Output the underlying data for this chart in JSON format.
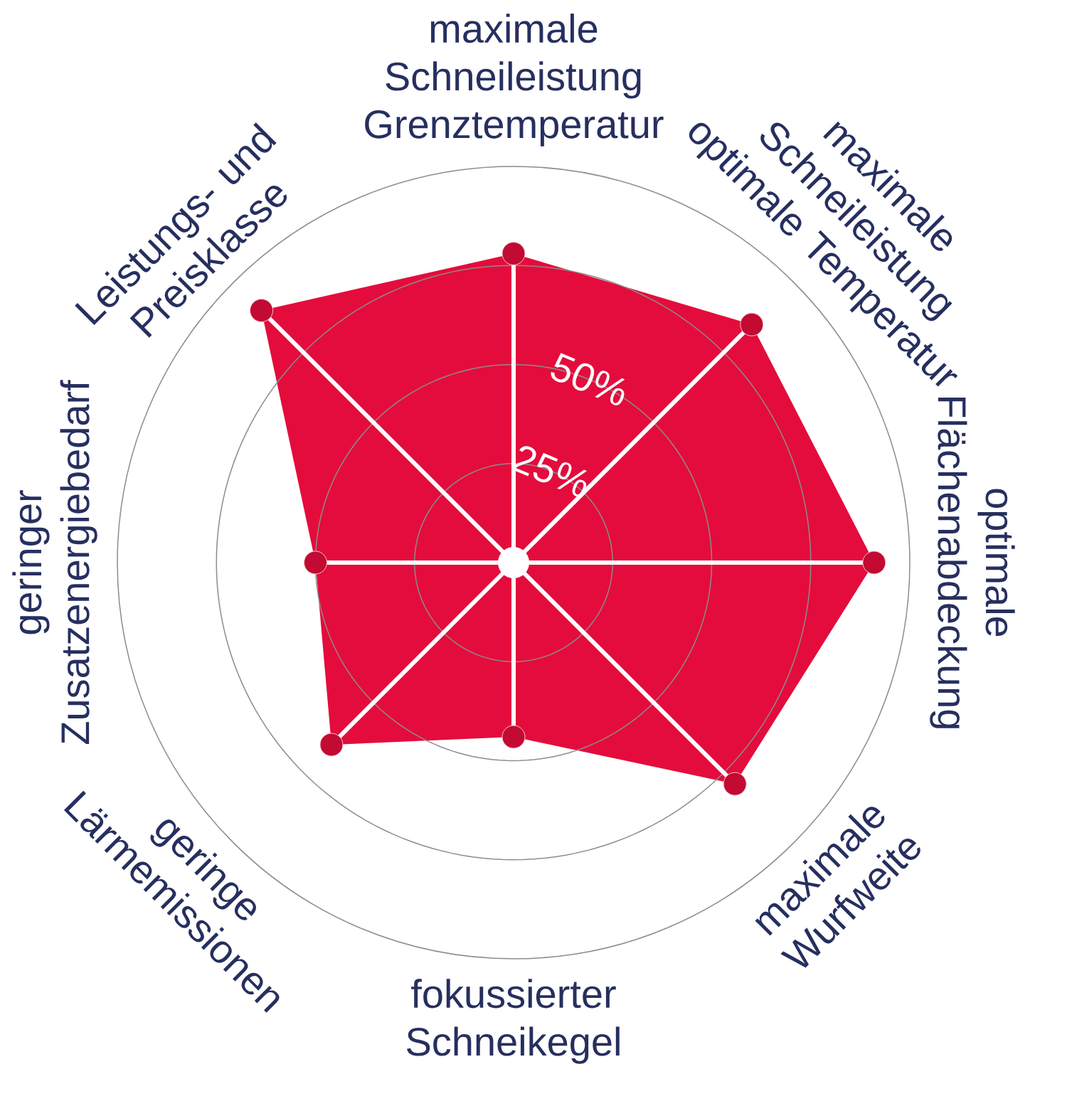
{
  "chart_data": {
    "type": "radar",
    "categories": [
      "maximale Schneileistung Grenztemperatur",
      "maximale Schneileistung optimale Temperatur",
      "optimale Flächenabdeckung",
      "maximale Wurfweite",
      "fokussierter Schneikegel",
      "geringe Lärmemissionen",
      "geringer Zusatzenergiebedarf",
      "Leistungs- und Preisklasse"
    ],
    "series": [
      {
        "color": "#e40c3c",
        "values": [
          78,
          85,
          91,
          79,
          44,
          65,
          50,
          90
        ]
      }
    ],
    "ylim": [
      0,
      100
    ],
    "yticks": [
      {
        "value": 25,
        "label": "25%"
      },
      {
        "value": 50,
        "label": "50%"
      }
    ],
    "grid": true,
    "marker": "circle"
  }
}
